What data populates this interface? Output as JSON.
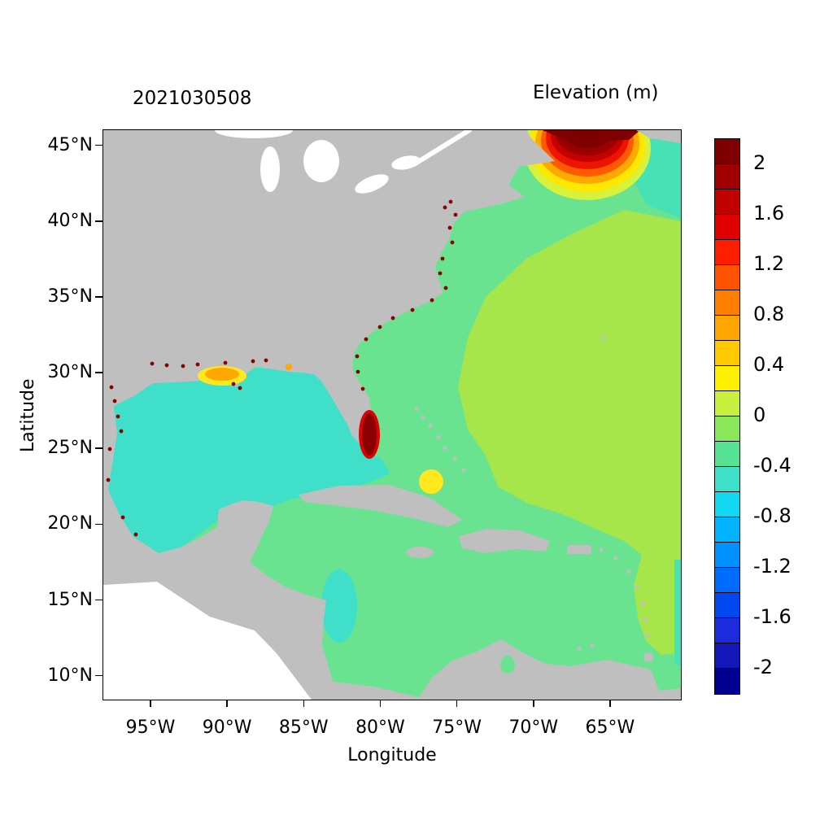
{
  "figure": {
    "left_title": "2021030508",
    "right_title": "Elevation (m)",
    "xlabel": "Longitude",
    "ylabel": "Latitude"
  },
  "axes": {
    "x_ticks": [
      {
        "label": "95°W",
        "lon_w": 95
      },
      {
        "label": "90°W",
        "lon_w": 90
      },
      {
        "label": "85°W",
        "lon_w": 85
      },
      {
        "label": "80°W",
        "lon_w": 80
      },
      {
        "label": "75°W",
        "lon_w": 75
      },
      {
        "label": "70°W",
        "lon_w": 70
      },
      {
        "label": "65°W",
        "lon_w": 65
      }
    ],
    "y_ticks": [
      {
        "label": "45°N",
        "lat_n": 45
      },
      {
        "label": "40°N",
        "lat_n": 40
      },
      {
        "label": "35°N",
        "lat_n": 35
      },
      {
        "label": "30°N",
        "lat_n": 30
      },
      {
        "label": "25°N",
        "lat_n": 25
      },
      {
        "label": "20°N",
        "lat_n": 20
      },
      {
        "label": "15°N",
        "lat_n": 15
      },
      {
        "label": "10°N",
        "lat_n": 10
      }
    ]
  },
  "colorbar": {
    "labels": [
      "2",
      "1.6",
      "1.2",
      "0.8",
      "0.4",
      "0",
      "-0.4",
      "-0.8",
      "-1.2",
      "-1.6",
      "-2"
    ],
    "colors": [
      "#7F0000",
      "#A00000",
      "#C10000",
      "#E10000",
      "#FF1E00",
      "#FF5200",
      "#FF7F00",
      "#FFA500",
      "#FFC900",
      "#FFF000",
      "#C8EE3E",
      "#8BE75C",
      "#57E294",
      "#3EE0C8",
      "#11D7F0",
      "#00B4FF",
      "#0090FF",
      "#006BFF",
      "#0048F0",
      "#1C2BDC",
      "#1418B8",
      "#000090"
    ]
  },
  "map_colors": {
    "outside_domain": "#FFFFFF",
    "land": "#BFBFBF",
    "lakes": "#FFFFFF",
    "shelf_green": "#69E390",
    "atlantic_offshore": "#A6E64A",
    "gulf_cyan": "#3FDFC9",
    "northeast_turquoise": "#46E2B6",
    "yellow_patch": "#FFE81E",
    "orange_patch": "#FFA800",
    "surge_red": "#E00000",
    "surge_dark_red": "#8B0000",
    "hotspot_rings": [
      "#D6F23C",
      "#FFE800",
      "#FFA800",
      "#FF5A00",
      "#EE1500",
      "#C40000",
      "#9B0000",
      "#7F0000"
    ]
  },
  "chart_data": {
    "type": "heatmap",
    "title": "Elevation (m)",
    "timestamp_label": "2021030508",
    "xlabel": "Longitude",
    "ylabel": "Latitude",
    "x_tick_labels": [
      "95°W",
      "90°W",
      "85°W",
      "80°W",
      "75°W",
      "70°W",
      "65°W"
    ],
    "y_tick_labels": [
      "45°N",
      "40°N",
      "35°N",
      "30°N",
      "25°N",
      "20°N",
      "15°N",
      "10°N"
    ],
    "lon_range_deg_west": [
      98,
      60.5
    ],
    "lat_range_deg_north": [
      8.5,
      46
    ],
    "legend_position": "right",
    "grid": false,
    "colorbar": {
      "label_values": [
        2,
        1.6,
        1.2,
        0.8,
        0.4,
        0,
        -0.4,
        -0.8,
        -1.2,
        -1.6,
        -2
      ],
      "value_range": [
        -2.2,
        2.2
      ],
      "level_step": 0.2,
      "orientation": "vertical"
    },
    "regions": [
      {
        "name": "Gulf of Maine / Bay of Fundy hotspot",
        "elevation_m": 2.2
      },
      {
        "name": "Hotspot fringe rings (yellow to red)",
        "elevation_m": 0.4
      },
      {
        "name": "Gulf of Mexico",
        "elevation_m": -0.5
      },
      {
        "name": "Open western Atlantic",
        "elevation_m": 0.2
      },
      {
        "name": "US east coast shelf band",
        "elevation_m": -0.1
      },
      {
        "name": "Caribbean Sea",
        "elevation_m": -0.1
      },
      {
        "name": "Northeast corner offshore (Scotian shelf)",
        "elevation_m": -0.3
      },
      {
        "name": "Florida east coast / Lake Okeechobee spot",
        "elevation_m": 2.2
      },
      {
        "name": "Louisiana coast patch",
        "elevation_m": 0.8
      },
      {
        "name": "Turks and Caicos yellow patch",
        "elevation_m": 0.4
      },
      {
        "name": "Coastal dark-red specks (Gulf and Atlantic coasts)",
        "elevation_m": 2.2
      }
    ]
  }
}
